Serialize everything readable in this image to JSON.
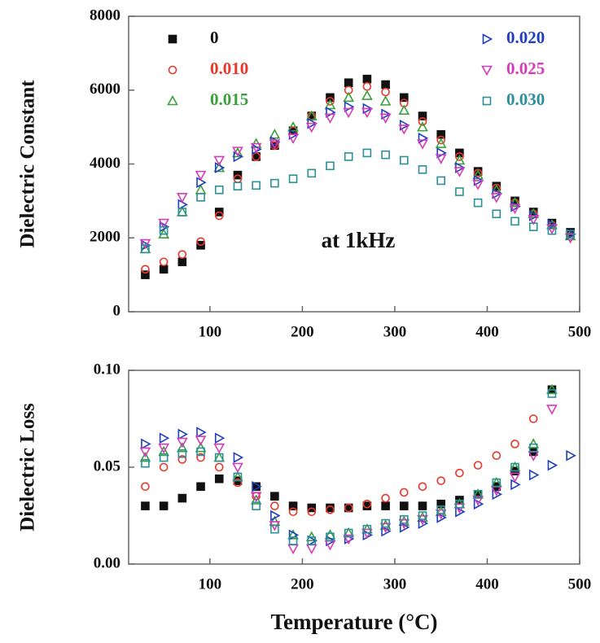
{
  "chart_data": [
    {
      "type": "scatter",
      "ylabel": "Dielectric Constant",
      "annotation": "at 1kHz",
      "x": [
        30,
        50,
        70,
        90,
        110,
        130,
        150,
        170,
        190,
        210,
        230,
        250,
        270,
        290,
        310,
        330,
        350,
        370,
        390,
        410,
        430,
        450,
        470,
        490
      ],
      "xlim": [
        12,
        500
      ],
      "xticks": [
        100,
        200,
        300,
        400,
        500
      ],
      "ylim": [
        0,
        8000
      ],
      "yticks": [
        0,
        2000,
        4000,
        6000,
        8000
      ],
      "legend": "top",
      "series": [
        {
          "name": "0",
          "color": "#111111",
          "marker": "square-filled",
          "values": [
            1000,
            1150,
            1350,
            1800,
            2700,
            3700,
            4200,
            4500,
            4900,
            5300,
            5800,
            6200,
            6300,
            6150,
            5800,
            5300,
            4800,
            4300,
            3800,
            3400,
            3000,
            2700,
            2400,
            2150
          ]
        },
        {
          "name": "0.010",
          "color": "#e8372a",
          "marker": "circle",
          "values": [
            1150,
            1350,
            1550,
            1900,
            2600,
            3600,
            4200,
            4500,
            4900,
            5300,
            5700,
            6000,
            6100,
            5950,
            5650,
            5150,
            4650,
            4200,
            3750,
            3350,
            2950,
            2650,
            2350,
            2050
          ]
        },
        {
          "name": "0.015",
          "color": "#3aa13a",
          "marker": "triangle-up",
          "values": [
            1700,
            2100,
            2700,
            3300,
            3900,
            4300,
            4550,
            4800,
            5000,
            5300,
            5600,
            5800,
            5850,
            5700,
            5450,
            5000,
            4550,
            4100,
            3700,
            3300,
            2950,
            2650,
            2350,
            2050
          ]
        },
        {
          "name": "0.020",
          "color": "#1f3fbf",
          "marker": "triangle-right",
          "values": [
            1800,
            2300,
            2900,
            3500,
            3900,
            4200,
            4400,
            4600,
            4800,
            5100,
            5400,
            5550,
            5500,
            5350,
            5050,
            4700,
            4300,
            3900,
            3550,
            3200,
            2850,
            2600,
            2350,
            2100
          ]
        },
        {
          "name": "0.025",
          "color": "#d63ab8",
          "marker": "triangle-down",
          "values": [
            1850,
            2400,
            3100,
            3700,
            4100,
            4350,
            4450,
            4550,
            4700,
            5000,
            5250,
            5400,
            5400,
            5250,
            4950,
            4550,
            4150,
            3800,
            3450,
            3100,
            2800,
            2500,
            2250,
            2000
          ]
        },
        {
          "name": "0.030",
          "color": "#2a8f9a",
          "marker": "square",
          "values": [
            1700,
            2200,
            2700,
            3100,
            3300,
            3400,
            3420,
            3480,
            3600,
            3750,
            3950,
            4200,
            4300,
            4250,
            4100,
            3850,
            3550,
            3250,
            2950,
            2650,
            2450,
            2300,
            2200,
            2100
          ]
        }
      ]
    },
    {
      "type": "scatter",
      "ylabel": "Dielectric Loss",
      "xlabel": "Temperature (°C)",
      "x": [
        30,
        50,
        70,
        90,
        110,
        130,
        150,
        170,
        190,
        210,
        230,
        250,
        270,
        290,
        310,
        330,
        350,
        370,
        390,
        410,
        430,
        450,
        470,
        490
      ],
      "xlim": [
        12,
        500
      ],
      "xticks": [
        100,
        200,
        300,
        400,
        500
      ],
      "ylim": [
        0,
        0.1
      ],
      "yticks": [
        {
          "value": 0,
          "label": "0.00"
        },
        {
          "value": 0.05,
          "label": "0.05"
        },
        {
          "value": 0.1,
          "label": "0.10"
        }
      ],
      "series": [
        {
          "color": "#111111",
          "marker": "square-filled",
          "values": [
            0.03,
            0.03,
            0.034,
            0.04,
            0.044,
            0.043,
            0.04,
            0.035,
            0.03,
            0.029,
            0.029,
            0.029,
            0.03,
            0.03,
            0.03,
            0.03,
            0.031,
            0.033,
            0.036,
            0.04,
            0.048,
            0.058,
            0.09,
            null
          ]
        },
        {
          "color": "#e8372a",
          "marker": "circle",
          "values": [
            0.04,
            0.05,
            0.054,
            0.055,
            0.05,
            0.042,
            0.035,
            0.03,
            0.027,
            0.027,
            0.028,
            0.029,
            0.031,
            0.034,
            0.037,
            0.04,
            0.043,
            0.047,
            0.051,
            0.056,
            0.062,
            0.075,
            null,
            null
          ]
        },
        {
          "color": "#3aa13a",
          "marker": "triangle-up",
          "values": [
            0.055,
            0.058,
            0.06,
            0.06,
            0.055,
            0.045,
            0.033,
            0.022,
            0.015,
            0.014,
            0.015,
            0.016,
            0.018,
            0.02,
            0.022,
            0.024,
            0.027,
            0.031,
            0.036,
            0.042,
            0.05,
            0.062,
            0.09,
            null
          ]
        },
        {
          "color": "#1f3fbf",
          "marker": "triangle-right",
          "values": [
            0.062,
            0.065,
            0.067,
            0.068,
            0.065,
            0.055,
            0.04,
            0.025,
            0.015,
            0.012,
            0.012,
            0.013,
            0.015,
            0.017,
            0.019,
            0.021,
            0.024,
            0.027,
            0.031,
            0.036,
            0.041,
            0.046,
            0.051,
            0.056
          ]
        },
        {
          "color": "#d63ab8",
          "marker": "triangle-down",
          "values": [
            0.058,
            0.06,
            0.063,
            0.064,
            0.06,
            0.05,
            0.035,
            0.02,
            0.008,
            0.008,
            0.01,
            0.013,
            0.016,
            0.019,
            0.021,
            0.023,
            0.026,
            0.029,
            0.033,
            0.038,
            0.045,
            0.056,
            0.08,
            null
          ]
        },
        {
          "color": "#2a8f9a",
          "marker": "square",
          "values": [
            0.052,
            0.055,
            0.057,
            0.058,
            0.055,
            0.045,
            0.03,
            0.018,
            0.012,
            0.012,
            0.014,
            0.016,
            0.018,
            0.021,
            0.023,
            0.025,
            0.028,
            0.031,
            0.036,
            0.042,
            0.05,
            0.06,
            0.088,
            null
          ]
        }
      ]
    }
  ]
}
